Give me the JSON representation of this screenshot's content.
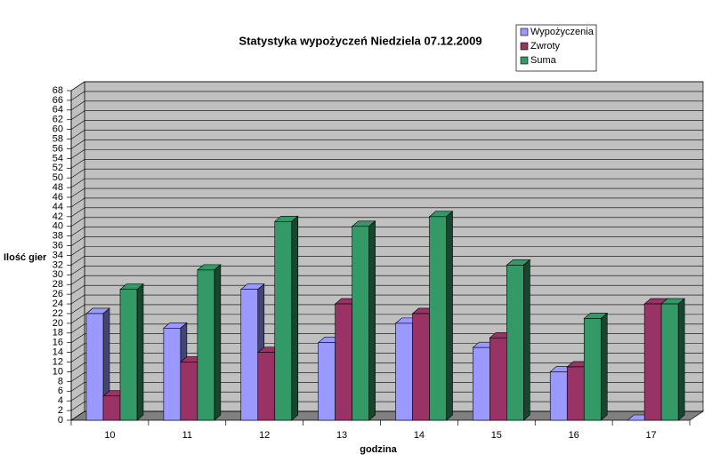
{
  "chart_data": {
    "type": "bar3d",
    "title": "Statystyka wypożyczeń Niedziela 07.12.2009",
    "x_label": "godzina",
    "y_label": "Ilość gier",
    "categories": [
      "10",
      "11",
      "12",
      "13",
      "14",
      "15",
      "16",
      "17"
    ],
    "series": [
      {
        "name": "Wypożyczenia",
        "color": "#9999ff",
        "values": [
          22,
          19,
          27,
          16,
          20,
          15,
          10,
          0
        ]
      },
      {
        "name": "Zwroty",
        "color": "#993366",
        "values": [
          5,
          12,
          14,
          24,
          22,
          17,
          11,
          24
        ]
      },
      {
        "name": "Suma",
        "color": "#339966",
        "values": [
          27,
          31,
          41,
          40,
          42,
          32,
          21,
          24
        ]
      }
    ],
    "ylim": [
      0,
      68
    ],
    "yticks": [
      0,
      2,
      4,
      6,
      8,
      10,
      12,
      14,
      16,
      18,
      20,
      22,
      24,
      26,
      28,
      30,
      32,
      34,
      36,
      38,
      40,
      42,
      44,
      46,
      48,
      50,
      52,
      54,
      56,
      58,
      60,
      62,
      64,
      66,
      68
    ],
    "grid": true,
    "legend": "top-right"
  }
}
